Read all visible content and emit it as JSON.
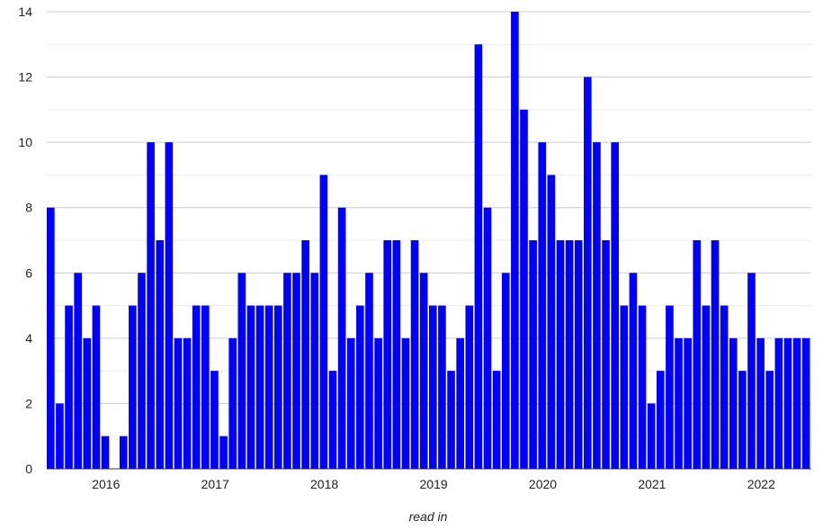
{
  "chart_data": {
    "type": "bar",
    "title": "",
    "xlabel": "read in",
    "ylabel": "",
    "ylim": [
      0,
      14
    ],
    "yticks": [
      0,
      2,
      4,
      6,
      8,
      10,
      12,
      14
    ],
    "grid": true,
    "legend": "none",
    "bar_color": "#0000ff",
    "x_tick_labels": [
      "2016",
      "2017",
      "2018",
      "2019",
      "2020",
      "2021",
      "2022"
    ],
    "categories": [
      "2015-07",
      "2015-08",
      "2015-09",
      "2015-10",
      "2015-11",
      "2015-12",
      "2016-01",
      "2016-02",
      "2016-03",
      "2016-04",
      "2016-05",
      "2016-06",
      "2016-07",
      "2016-08",
      "2016-09",
      "2016-10",
      "2016-11",
      "2016-12",
      "2017-01",
      "2017-02",
      "2017-03",
      "2017-04",
      "2017-05",
      "2017-06",
      "2017-07",
      "2017-08",
      "2017-09",
      "2017-10",
      "2017-11",
      "2017-12",
      "2018-01",
      "2018-02",
      "2018-03",
      "2018-04",
      "2018-05",
      "2018-06",
      "2018-07",
      "2018-08",
      "2018-09",
      "2018-10",
      "2018-11",
      "2018-12",
      "2019-01",
      "2019-02",
      "2019-03",
      "2019-04",
      "2019-05",
      "2019-06",
      "2019-07",
      "2019-08",
      "2019-09",
      "2019-10",
      "2019-11",
      "2019-12",
      "2020-01",
      "2020-02",
      "2020-03",
      "2020-04",
      "2020-05",
      "2020-06",
      "2020-07",
      "2020-08",
      "2020-09",
      "2020-10",
      "2020-11",
      "2020-12",
      "2021-01",
      "2021-02",
      "2021-03",
      "2021-04",
      "2021-05",
      "2021-06",
      "2021-07",
      "2021-08",
      "2021-09",
      "2021-10",
      "2021-11",
      "2021-12",
      "2022-01",
      "2022-02",
      "2022-03",
      "2022-04",
      "2022-05",
      "2022-06"
    ],
    "values": [
      8,
      2,
      5,
      6,
      4,
      5,
      1,
      0,
      1,
      5,
      6,
      10,
      7,
      10,
      4,
      4,
      5,
      5,
      3,
      1,
      4,
      6,
      5,
      5,
      5,
      5,
      6,
      6,
      7,
      6,
      9,
      3,
      8,
      4,
      5,
      6,
      4,
      7,
      7,
      4,
      7,
      6,
      5,
      5,
      3,
      4,
      5,
      13,
      8,
      3,
      6,
      14,
      11,
      7,
      10,
      9,
      7,
      7,
      7,
      12,
      10,
      7,
      10,
      5,
      6,
      5,
      2,
      3,
      5,
      4,
      4,
      7,
      5,
      7,
      5,
      4,
      3,
      6,
      4,
      3,
      4,
      4,
      4,
      4
    ]
  }
}
